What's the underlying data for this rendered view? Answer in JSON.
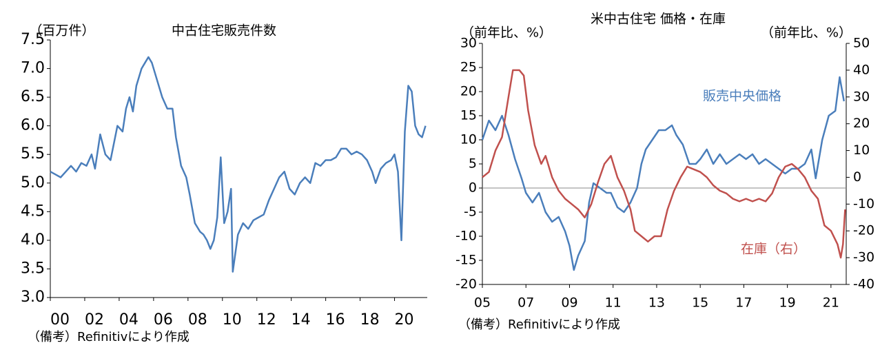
{
  "chart_data": [
    {
      "type": "line",
      "title": "中古住宅販売件数",
      "ylabel": "（百万件）",
      "note": "（備考）Refinitivにより作成",
      "color": "#4a7ebb",
      "x": [
        2000.0,
        2000.3,
        2000.6,
        2000.9,
        2001.2,
        2001.5,
        2001.8,
        2002.1,
        2002.4,
        2002.6,
        2002.9,
        2003.2,
        2003.5,
        2003.7,
        2003.9,
        2004.2,
        2004.4,
        2004.6,
        2004.8,
        2005.0,
        2005.3,
        2005.5,
        2005.7,
        2005.9,
        2006.2,
        2006.5,
        2006.8,
        2007.1,
        2007.3,
        2007.6,
        2007.9,
        2008.1,
        2008.4,
        2008.7,
        2008.9,
        2009.1,
        2009.3,
        2009.5,
        2009.7,
        2009.9,
        2010.1,
        2010.3,
        2010.5,
        2010.6,
        2010.9,
        2011.2,
        2011.5,
        2011.8,
        2012.1,
        2012.4,
        2012.7,
        2013.0,
        2013.3,
        2013.6,
        2013.9,
        2014.2,
        2014.5,
        2014.8,
        2015.1,
        2015.4,
        2015.7,
        2016.0,
        2016.3,
        2016.6,
        2016.9,
        2017.2,
        2017.5,
        2017.8,
        2018.1,
        2018.4,
        2018.7,
        2018.9,
        2019.2,
        2019.5,
        2019.8,
        2020.0,
        2020.2,
        2020.4,
        2020.6,
        2020.8,
        2021.0,
        2021.2,
        2021.4,
        2021.6,
        2021.8
      ],
      "values": [
        5.2,
        5.15,
        5.1,
        5.2,
        5.3,
        5.2,
        5.35,
        5.3,
        5.5,
        5.25,
        5.85,
        5.5,
        5.4,
        5.7,
        6.0,
        5.9,
        6.3,
        6.5,
        6.25,
        6.7,
        7.0,
        7.1,
        7.2,
        7.1,
        6.8,
        6.5,
        6.3,
        6.3,
        5.8,
        5.3,
        5.1,
        4.8,
        4.3,
        4.15,
        4.1,
        4.0,
        3.85,
        4.0,
        4.4,
        5.45,
        4.3,
        4.5,
        4.9,
        3.45,
        4.1,
        4.3,
        4.2,
        4.35,
        4.4,
        4.45,
        4.7,
        4.9,
        5.1,
        5.2,
        4.9,
        4.8,
        5.0,
        5.1,
        5.0,
        5.35,
        5.3,
        5.4,
        5.4,
        5.45,
        5.6,
        5.6,
        5.5,
        5.55,
        5.5,
        5.4,
        5.2,
        5.0,
        5.25,
        5.35,
        5.4,
        5.5,
        5.2,
        4.0,
        5.9,
        6.7,
        6.6,
        6.0,
        5.85,
        5.8,
        6.0
      ],
      "xlim": [
        2000,
        2021.9
      ],
      "xticks": [
        {
          "value": 2000,
          "label": "00"
        },
        {
          "value": 2002,
          "label": "02"
        },
        {
          "value": 2004,
          "label": "04"
        },
        {
          "value": 2006,
          "label": "06"
        },
        {
          "value": 2008,
          "label": "08"
        },
        {
          "value": 2010,
          "label": "10"
        },
        {
          "value": 2012,
          "label": "12"
        },
        {
          "value": 2014,
          "label": "14"
        },
        {
          "value": 2016,
          "label": "16"
        },
        {
          "value": 2018,
          "label": "18"
        },
        {
          "value": 2020,
          "label": "20"
        }
      ],
      "ylim": [
        3,
        7.5
      ],
      "yticks": [
        {
          "value": 3,
          "label": "3.0"
        },
        3.5,
        {
          "value": 4,
          "label": "4.0"
        },
        4.5,
        {
          "value": 5,
          "label": "5.0"
        },
        5.5,
        {
          "value": 6,
          "label": "6.0"
        },
        6.5,
        {
          "value": 7,
          "label": "7.0"
        },
        7.5
      ]
    },
    {
      "type": "line",
      "title": "米中古住宅 価格・在庫",
      "ylabel": "（前年比、%）",
      "y2label": "（前年比、%）",
      "note": "（備考）Refinitivにより作成",
      "zero_line": true,
      "series": [
        {
          "name": "販売中央価格",
          "color": "#4a7ebb",
          "x": [
            2005.0,
            2005.3,
            2005.6,
            2005.9,
            2006.2,
            2006.5,
            2006.8,
            2007.0,
            2007.3,
            2007.6,
            2007.9,
            2008.2,
            2008.5,
            2008.8,
            2009.0,
            2009.2,
            2009.4,
            2009.7,
            2009.9,
            2010.1,
            2010.4,
            2010.7,
            2010.9,
            2011.2,
            2011.5,
            2011.8,
            2012.1,
            2012.3,
            2012.5,
            2012.8,
            2013.1,
            2013.4,
            2013.7,
            2013.9,
            2014.2,
            2014.5,
            2014.8,
            2015.0,
            2015.3,
            2015.6,
            2015.9,
            2016.2,
            2016.5,
            2016.8,
            2017.1,
            2017.4,
            2017.7,
            2018.0,
            2018.3,
            2018.6,
            2018.9,
            2019.2,
            2019.5,
            2019.8,
            2020.1,
            2020.3,
            2020.6,
            2020.9,
            2021.2,
            2021.4,
            2021.6
          ],
          "values": [
            10,
            14,
            12,
            15,
            11,
            6,
            2,
            -1,
            -3,
            -1,
            -5,
            -7,
            -6,
            -9,
            -12,
            -17,
            -14,
            -11,
            -3,
            1,
            0,
            -1,
            -1,
            -4,
            -5,
            -3,
            0,
            5,
            8,
            10,
            12,
            12,
            13,
            11,
            9,
            5,
            5,
            6,
            8,
            5,
            7,
            5,
            6,
            7,
            6,
            7,
            5,
            6,
            5,
            4,
            3,
            4,
            4,
            5,
            8,
            2,
            10,
            15,
            16,
            23,
            18
          ]
        },
        {
          "name": "在庫（右）",
          "color": "#c0504d",
          "axis": "y2",
          "x": [
            2005.0,
            2005.3,
            2005.6,
            2005.9,
            2006.2,
            2006.4,
            2006.7,
            2006.9,
            2007.1,
            2007.4,
            2007.7,
            2007.9,
            2008.2,
            2008.5,
            2008.8,
            2009.1,
            2009.4,
            2009.7,
            2010.0,
            2010.3,
            2010.6,
            2010.9,
            2011.2,
            2011.5,
            2011.8,
            2012.0,
            2012.3,
            2012.6,
            2012.9,
            2013.2,
            2013.5,
            2013.8,
            2014.1,
            2014.4,
            2014.7,
            2015.0,
            2015.3,
            2015.6,
            2015.9,
            2016.2,
            2016.5,
            2016.8,
            2017.1,
            2017.4,
            2017.7,
            2018.0,
            2018.3,
            2018.6,
            2018.9,
            2019.2,
            2019.5,
            2019.8,
            2020.1,
            2020.4,
            2020.7,
            2021.0,
            2021.3,
            2021.45,
            2021.55,
            2021.65
          ],
          "values": [
            0,
            2,
            10,
            15,
            30,
            40,
            40,
            38,
            25,
            12,
            5,
            8,
            0,
            -5,
            -8,
            -10,
            -12,
            -15,
            -10,
            -2,
            5,
            8,
            0,
            -5,
            -12,
            -20,
            -22,
            -24,
            -22,
            -22,
            -12,
            -5,
            0,
            4,
            3,
            2,
            0,
            -3,
            -5,
            -6,
            -8,
            -9,
            -8,
            -9,
            -8,
            -9,
            -6,
            0,
            4,
            5,
            3,
            0,
            -5,
            -8,
            -18,
            -20,
            -25,
            -30,
            -25,
            -12
          ]
        }
      ],
      "xlim": [
        2005,
        2021.7
      ],
      "xticks": [
        {
          "value": 2005,
          "label": "05"
        },
        {
          "value": 2007,
          "label": "07"
        },
        {
          "value": 2009,
          "label": "09"
        },
        {
          "value": 2011,
          "label": "11"
        },
        {
          "value": 2013,
          "label": "13"
        },
        {
          "value": 2015,
          "label": "15"
        },
        {
          "value": 2017,
          "label": "17"
        },
        {
          "value": 2019,
          "label": "19"
        },
        {
          "value": 2021,
          "label": "21"
        }
      ],
      "ylim": [
        -20,
        30
      ],
      "yticks": [
        -20,
        -15,
        -10,
        -5,
        0,
        5,
        10,
        15,
        20,
        25,
        30
      ],
      "y2lim": [
        -40,
        50
      ],
      "y2ticks": [
        -40,
        -30,
        -20,
        -10,
        0,
        10,
        20,
        30,
        40,
        50
      ]
    }
  ]
}
